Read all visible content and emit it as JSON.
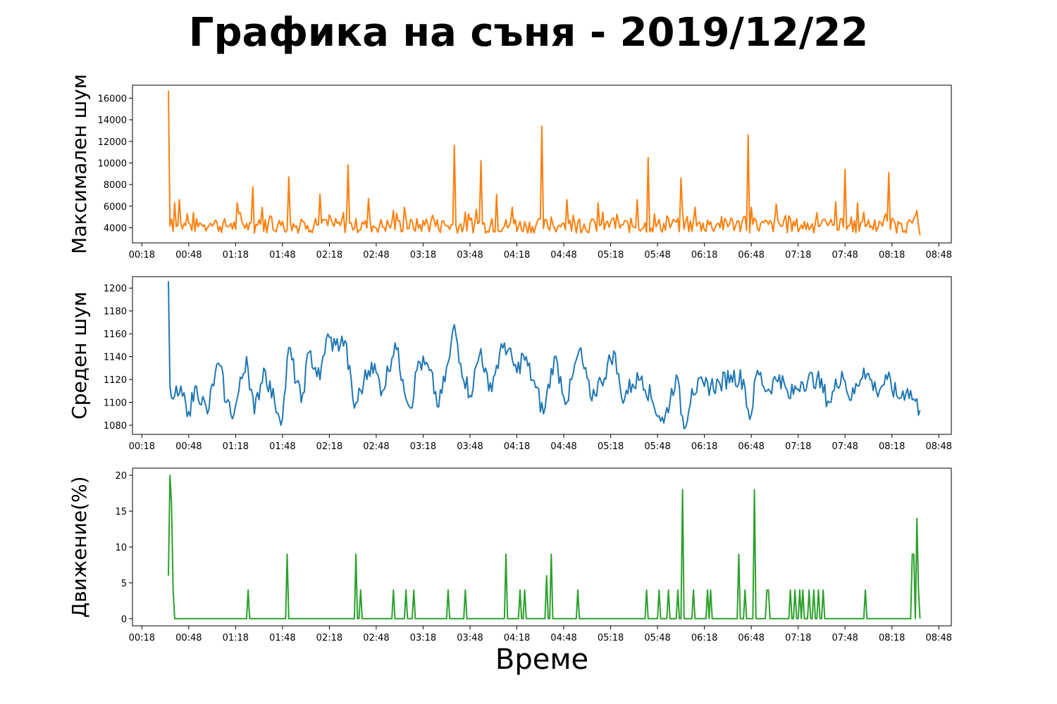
{
  "chart_data": {
    "type": "line",
    "title": "Графика на съня - 2019/12/22",
    "xlabel": "Време",
    "x_ticks": [
      "00:18",
      "00:48",
      "01:18",
      "01:48",
      "02:18",
      "02:48",
      "03:18",
      "03:48",
      "04:18",
      "04:48",
      "05:18",
      "05:48",
      "06:18",
      "06:48",
      "07:18",
      "07:48",
      "08:18",
      "08:48"
    ],
    "x_range": [
      "00:12",
      "08:56"
    ],
    "panels": [
      {
        "ylabel": "Максимален шум",
        "color": "#ff7f0e",
        "ylim": [
          2600,
          17200
        ],
        "yticks": [
          4000,
          6000,
          8000,
          10000,
          12000,
          14000,
          16000
        ],
        "x_start": "00:35",
        "x_end": "08:36",
        "baseline": 4200,
        "peaks": [
          [
            "00:35",
            16700
          ],
          [
            "00:37",
            4800
          ],
          [
            "00:39",
            6300
          ],
          [
            "00:42",
            6600
          ],
          [
            "00:47",
            5300
          ],
          [
            "01:05",
            4700
          ],
          [
            "01:15",
            4400
          ],
          [
            "01:19",
            6300
          ],
          [
            "01:25",
            4400
          ],
          [
            "01:29",
            7800
          ],
          [
            "01:35",
            5900
          ],
          [
            "01:40",
            5100
          ],
          [
            "01:48",
            4600
          ],
          [
            "01:52",
            8700
          ],
          [
            "02:00",
            4800
          ],
          [
            "02:12",
            7100
          ],
          [
            "02:27",
            5400
          ],
          [
            "02:30",
            9800
          ],
          [
            "02:43",
            6700
          ],
          [
            "02:59",
            5600
          ],
          [
            "03:06",
            5900
          ],
          [
            "03:20",
            4800
          ],
          [
            "03:38",
            11600
          ],
          [
            "03:52",
            5700
          ],
          [
            "03:55",
            10200
          ],
          [
            "04:05",
            7100
          ],
          [
            "04:15",
            5900
          ],
          [
            "04:34",
            13400
          ],
          [
            "04:40",
            5000
          ],
          [
            "04:50",
            6600
          ],
          [
            "04:58",
            4800
          ],
          [
            "05:10",
            6300
          ],
          [
            "05:20",
            4900
          ],
          [
            "05:35",
            6600
          ],
          [
            "05:42",
            10500
          ],
          [
            "05:55",
            4900
          ],
          [
            "06:03",
            8600
          ],
          [
            "06:12",
            5900
          ],
          [
            "06:35",
            4900
          ],
          [
            "06:46",
            12600
          ],
          [
            "06:48",
            5900
          ],
          [
            "06:50",
            4900
          ],
          [
            "07:04",
            6200
          ],
          [
            "07:12",
            5100
          ],
          [
            "07:30",
            5400
          ],
          [
            "07:42",
            6400
          ],
          [
            "07:48",
            9400
          ],
          [
            "07:56",
            6300
          ],
          [
            "08:10",
            4600
          ],
          [
            "08:16",
            9100
          ],
          [
            "08:30",
            4600
          ],
          [
            "08:34",
            5600
          ],
          [
            "08:36",
            3300
          ]
        ]
      },
      {
        "ylabel": "Среден шум",
        "color": "#1f77b4",
        "ylim": [
          1072,
          1210
        ],
        "yticks": [
          1080,
          1100,
          1120,
          1140,
          1160,
          1180,
          1200
        ],
        "x_start": "00:35",
        "x_end": "08:36",
        "points": [
          [
            "00:35",
            1206
          ],
          [
            "00:36",
            1114
          ],
          [
            "00:38",
            1103
          ],
          [
            "00:42",
            1108
          ],
          [
            "00:46",
            1100
          ],
          [
            "00:48",
            1092
          ],
          [
            "00:53",
            1114
          ],
          [
            "01:00",
            1090
          ],
          [
            "01:05",
            1126
          ],
          [
            "01:08",
            1132
          ],
          [
            "01:12",
            1100
          ],
          [
            "01:17",
            1090
          ],
          [
            "01:25",
            1140
          ],
          [
            "01:30",
            1090
          ],
          [
            "01:36",
            1130
          ],
          [
            "01:43",
            1100
          ],
          [
            "01:48",
            1086
          ],
          [
            "01:52",
            1148
          ],
          [
            "02:00",
            1100
          ],
          [
            "02:05",
            1144
          ],
          [
            "02:12",
            1120
          ],
          [
            "02:16",
            1156
          ],
          [
            "02:22",
            1150
          ],
          [
            "02:28",
            1154
          ],
          [
            "02:34",
            1095
          ],
          [
            "02:40",
            1118
          ],
          [
            "02:45",
            1135
          ],
          [
            "02:52",
            1110
          ],
          [
            "03:00",
            1152
          ],
          [
            "03:05",
            1120
          ],
          [
            "03:10",
            1095
          ],
          [
            "03:15",
            1136
          ],
          [
            "03:22",
            1128
          ],
          [
            "03:28",
            1096
          ],
          [
            "03:35",
            1140
          ],
          [
            "03:38",
            1168
          ],
          [
            "03:42",
            1134
          ],
          [
            "03:48",
            1106
          ],
          [
            "03:55",
            1147
          ],
          [
            "04:00",
            1110
          ],
          [
            "04:10",
            1152
          ],
          [
            "04:18",
            1126
          ],
          [
            "04:22",
            1142
          ],
          [
            "04:30",
            1113
          ],
          [
            "04:35",
            1090
          ],
          [
            "04:42",
            1140
          ],
          [
            "04:50",
            1100
          ],
          [
            "04:58",
            1146
          ],
          [
            "05:05",
            1105
          ],
          [
            "05:12",
            1118
          ],
          [
            "05:20",
            1145
          ],
          [
            "05:25",
            1104
          ],
          [
            "05:32",
            1116
          ],
          [
            "05:38",
            1123
          ],
          [
            "05:45",
            1100
          ],
          [
            "05:52",
            1082
          ],
          [
            "06:00",
            1124
          ],
          [
            "06:05",
            1077
          ],
          [
            "06:10",
            1112
          ],
          [
            "06:18",
            1114
          ],
          [
            "06:28",
            1116
          ],
          [
            "06:35",
            1124
          ],
          [
            "06:43",
            1120
          ],
          [
            "06:47",
            1085
          ],
          [
            "06:52",
            1128
          ],
          [
            "06:58",
            1110
          ],
          [
            "07:06",
            1124
          ],
          [
            "07:12",
            1104
          ],
          [
            "07:20",
            1118
          ],
          [
            "07:30",
            1121
          ],
          [
            "07:38",
            1100
          ],
          [
            "07:46",
            1127
          ],
          [
            "07:52",
            1102
          ],
          [
            "08:00",
            1130
          ],
          [
            "08:08",
            1110
          ],
          [
            "08:15",
            1120
          ],
          [
            "08:22",
            1104
          ],
          [
            "08:28",
            1112
          ],
          [
            "08:36",
            1093
          ]
        ]
      },
      {
        "ylabel": "Движение(%)",
        "color": "#2ca02c",
        "ylim": [
          -1,
          21
        ],
        "yticks": [
          0,
          5,
          10,
          15,
          20
        ],
        "x_start": "00:35",
        "x_end": "08:36",
        "baseline": 0,
        "spikes": [
          [
            "00:35",
            6
          ],
          [
            "00:36",
            20
          ],
          [
            "00:37",
            16
          ],
          [
            "00:38",
            4
          ],
          [
            "01:26",
            4
          ],
          [
            "01:51",
            9
          ],
          [
            "02:35",
            9
          ],
          [
            "02:38",
            4
          ],
          [
            "02:59",
            4
          ],
          [
            "03:07",
            4
          ],
          [
            "03:12",
            4
          ],
          [
            "03:34",
            4
          ],
          [
            "03:45",
            4
          ],
          [
            "04:11",
            9
          ],
          [
            "04:20",
            4
          ],
          [
            "04:23",
            4
          ],
          [
            "04:37",
            6
          ],
          [
            "04:40",
            9
          ],
          [
            "04:57",
            4
          ],
          [
            "05:41",
            4
          ],
          [
            "05:49",
            4
          ],
          [
            "05:55",
            4
          ],
          [
            "06:01",
            4
          ],
          [
            "06:04",
            18
          ],
          [
            "06:11",
            4
          ],
          [
            "06:20",
            4
          ],
          [
            "06:22",
            4
          ],
          [
            "06:40",
            9
          ],
          [
            "06:44",
            4
          ],
          [
            "06:50",
            18
          ],
          [
            "06:58",
            4
          ],
          [
            "06:59",
            4
          ],
          [
            "07:13",
            4
          ],
          [
            "07:16",
            4
          ],
          [
            "07:19",
            4
          ],
          [
            "07:21",
            4
          ],
          [
            "07:25",
            4
          ],
          [
            "07:28",
            4
          ],
          [
            "07:31",
            4
          ],
          [
            "07:34",
            4
          ],
          [
            "08:01",
            4
          ],
          [
            "08:31",
            9
          ],
          [
            "08:32",
            9
          ],
          [
            "08:34",
            14
          ],
          [
            "08:35",
            4
          ]
        ]
      }
    ]
  }
}
